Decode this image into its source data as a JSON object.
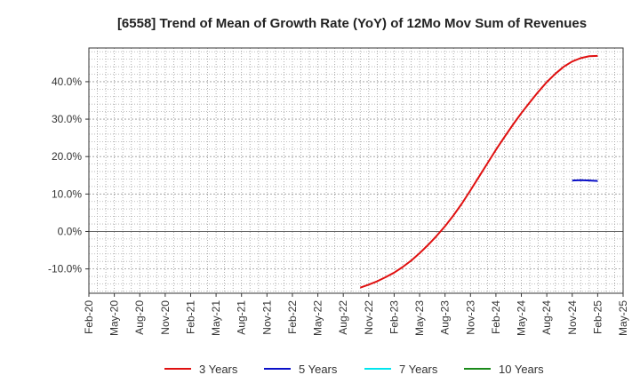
{
  "chart_data": {
    "type": "line",
    "title": "[6558]  Trend of Mean of Growth Rate (YoY) of 12Mo Mov Sum of Revenues",
    "xlabel": "",
    "ylabel": "",
    "x_tick_labels": [
      "Feb-20",
      "May-20",
      "Aug-20",
      "Nov-20",
      "Feb-21",
      "May-21",
      "Aug-21",
      "Nov-21",
      "Feb-22",
      "May-22",
      "Aug-22",
      "Nov-22",
      "Feb-23",
      "May-23",
      "Aug-23",
      "Nov-23",
      "Feb-24",
      "May-24",
      "Aug-24",
      "Nov-24",
      "Feb-25",
      "May-25"
    ],
    "y_ticks": [
      -10,
      0,
      10,
      20,
      30,
      40
    ],
    "y_tick_labels": [
      "-10.0%",
      "0.0%",
      "10.0%",
      "20.0%",
      "30.0%",
      "40.0%"
    ],
    "ylim": [
      -16.5,
      49
    ],
    "x_month_range": [
      0,
      63
    ],
    "grid": true,
    "series": [
      {
        "name": "3 Years",
        "color": "#e01010",
        "points": [
          {
            "x": "Oct-22",
            "xm": 32,
            "y": -15.0
          },
          {
            "x": "Nov-22",
            "xm": 33,
            "y": -14.2
          },
          {
            "x": "Dec-22",
            "xm": 34,
            "y": -13.3
          },
          {
            "x": "Jan-23",
            "xm": 35,
            "y": -12.2
          },
          {
            "x": "Feb-23",
            "xm": 36,
            "y": -11.0
          },
          {
            "x": "Mar-23",
            "xm": 37,
            "y": -9.5
          },
          {
            "x": "Apr-23",
            "xm": 38,
            "y": -7.8
          },
          {
            "x": "May-23",
            "xm": 39,
            "y": -5.8
          },
          {
            "x": "Jun-23",
            "xm": 40,
            "y": -3.6
          },
          {
            "x": "Jul-23",
            "xm": 41,
            "y": -1.2
          },
          {
            "x": "Aug-23",
            "xm": 42,
            "y": 1.4
          },
          {
            "x": "Sep-23",
            "xm": 43,
            "y": 4.3
          },
          {
            "x": "Oct-23",
            "xm": 44,
            "y": 7.5
          },
          {
            "x": "Nov-23",
            "xm": 45,
            "y": 11.0
          },
          {
            "x": "Dec-23",
            "xm": 46,
            "y": 14.6
          },
          {
            "x": "Jan-24",
            "xm": 47,
            "y": 18.2
          },
          {
            "x": "Feb-24",
            "xm": 48,
            "y": 21.8
          },
          {
            "x": "Mar-24",
            "xm": 49,
            "y": 25.2
          },
          {
            "x": "Apr-24",
            "xm": 50,
            "y": 28.5
          },
          {
            "x": "May-24",
            "xm": 51,
            "y": 31.6
          },
          {
            "x": "Jun-24",
            "xm": 52,
            "y": 34.5
          },
          {
            "x": "Jul-24",
            "xm": 53,
            "y": 37.3
          },
          {
            "x": "Aug-24",
            "xm": 54,
            "y": 39.9
          },
          {
            "x": "Sep-24",
            "xm": 55,
            "y": 42.1
          },
          {
            "x": "Oct-24",
            "xm": 56,
            "y": 44.0
          },
          {
            "x": "Nov-24",
            "xm": 57,
            "y": 45.4
          },
          {
            "x": "Dec-24",
            "xm": 58,
            "y": 46.3
          },
          {
            "x": "Jan-25",
            "xm": 59,
            "y": 46.8
          },
          {
            "x": "Feb-25",
            "xm": 60,
            "y": 46.9
          }
        ]
      },
      {
        "name": "5 Years",
        "color": "#0a10c8",
        "points": [
          {
            "x": "Nov-24",
            "xm": 57,
            "y": 13.6
          },
          {
            "x": "Dec-24",
            "xm": 58,
            "y": 13.7
          },
          {
            "x": "Jan-25",
            "xm": 59,
            "y": 13.6
          },
          {
            "x": "Feb-25",
            "xm": 60,
            "y": 13.5
          }
        ]
      },
      {
        "name": "7 Years",
        "color": "#00e5ee",
        "points": []
      },
      {
        "name": "10 Years",
        "color": "#1a8a1a",
        "points": []
      }
    ],
    "legend": {
      "placement": "bottom",
      "entries": [
        "3 Years",
        "5 Years",
        "7 Years",
        "10 Years"
      ]
    }
  }
}
